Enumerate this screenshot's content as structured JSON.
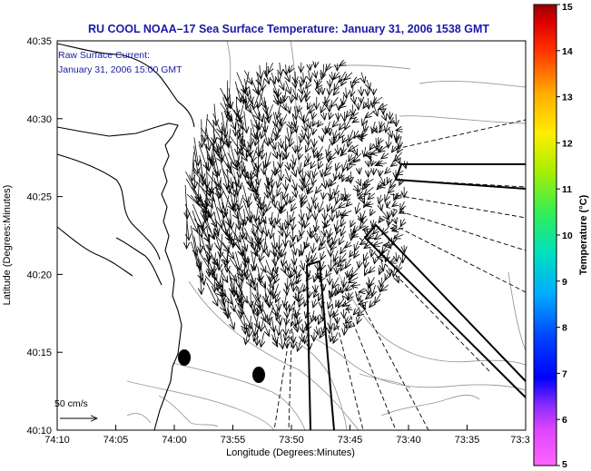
{
  "title": "RU COOL  NOAA–17  Sea Surface Temperature:  January 31, 2006 1538 GMT",
  "overlay": {
    "line1": "Raw Surface Current:",
    "line2": "January 31, 2006 15:00 GMT"
  },
  "scale_label": "50 cm/s",
  "colors": {
    "title_text": "#1a1aa6",
    "frame": "#000000",
    "contour": "#9a9a9a",
    "coast": "#000000",
    "arrows": "#000000"
  },
  "chart_data": {
    "type": "map",
    "xlabel": "Longitude (Degrees:Minutes)",
    "ylabel": "Latitude (Degrees:Minutes)",
    "x_ticks": [
      "74:10",
      "74:05",
      "74:00",
      "73:55",
      "73:50",
      "73:45",
      "73:40",
      "73:35",
      "73:3"
    ],
    "y_ticks": [
      "40:35",
      "40:30",
      "40:25",
      "40:20",
      "40:15",
      "40:10"
    ],
    "x_range_deg": [
      -74.1667,
      -73.5
    ],
    "y_range_deg": [
      40.1667,
      40.5833
    ],
    "colorbar": {
      "label": "Temperature (°C)",
      "min": 5,
      "max": 15,
      "ticks": [
        "15",
        "14",
        "13",
        "12",
        "11",
        "10",
        "9",
        "8",
        "7",
        "6",
        "5"
      ]
    }
  }
}
